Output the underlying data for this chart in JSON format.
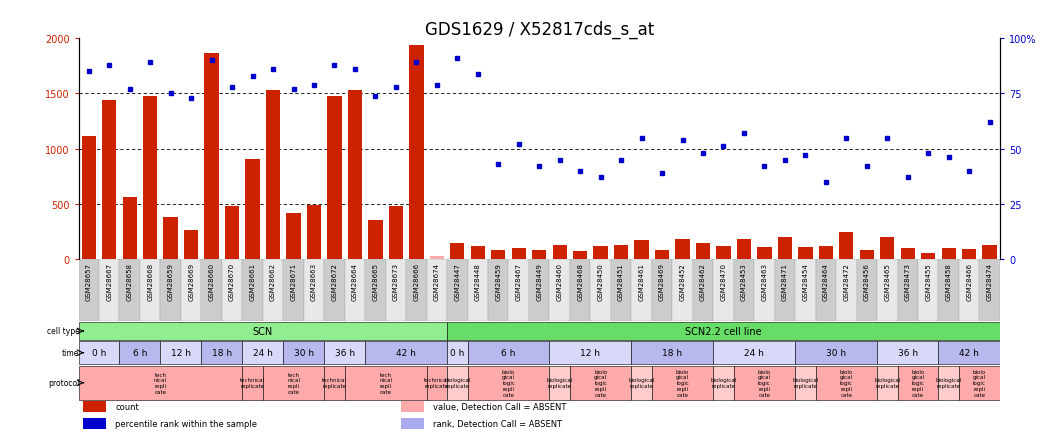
{
  "title": "GDS1629 / X52817cds_s_at",
  "sample_ids": [
    "GSM28657",
    "GSM28667",
    "GSM28658",
    "GSM28668",
    "GSM28659",
    "GSM28669",
    "GSM28660",
    "GSM28670",
    "GSM28661",
    "GSM28662",
    "GSM28671",
    "GSM28663",
    "GSM28672",
    "GSM28664",
    "GSM28665",
    "GSM28673",
    "GSM28666",
    "GSM28674",
    "GSM28447",
    "GSM28448",
    "GSM28459",
    "GSM28467",
    "GSM28449",
    "GSM28460",
    "GSM28468",
    "GSM28450",
    "GSM28451",
    "GSM28461",
    "GSM28469",
    "GSM28452",
    "GSM28462",
    "GSM28470",
    "GSM28453",
    "GSM28463",
    "GSM28471",
    "GSM28454",
    "GSM28464",
    "GSM28472",
    "GSM28456",
    "GSM28465",
    "GSM28473",
    "GSM28455",
    "GSM28458",
    "GSM28466",
    "GSM28474"
  ],
  "counts": [
    1110,
    1440,
    560,
    1480,
    380,
    260,
    1870,
    480,
    910,
    1530,
    420,
    490,
    1480,
    1530,
    350,
    480,
    1940,
    30,
    150,
    120,
    80,
    100,
    80,
    130,
    70,
    120,
    130,
    170,
    80,
    180,
    150,
    120,
    180,
    110,
    200,
    110,
    120,
    250,
    80,
    200,
    100,
    60,
    100,
    90,
    130
  ],
  "absent_counts": [
    false,
    false,
    false,
    false,
    false,
    false,
    false,
    false,
    false,
    false,
    false,
    false,
    false,
    false,
    false,
    false,
    false,
    true,
    false,
    false,
    false,
    false,
    false,
    false,
    false,
    false,
    false,
    false,
    false,
    false,
    false,
    false,
    false,
    false,
    false,
    false,
    false,
    false,
    false,
    false,
    false,
    false,
    false,
    false,
    false
  ],
  "ranks": [
    85,
    88,
    77,
    89,
    75,
    73,
    90,
    78,
    83,
    86,
    77,
    79,
    88,
    86,
    74,
    78,
    89,
    79,
    91,
    84,
    43,
    52,
    42,
    45,
    40,
    37,
    45,
    55,
    39,
    54,
    48,
    51,
    57,
    42,
    45,
    47,
    35,
    55,
    42,
    55,
    37,
    48,
    46,
    40,
    62
  ],
  "absent_ranks": [
    false,
    false,
    false,
    false,
    false,
    false,
    false,
    false,
    false,
    false,
    false,
    false,
    false,
    false,
    false,
    false,
    false,
    false,
    false,
    false,
    false,
    false,
    false,
    false,
    false,
    false,
    false,
    false,
    false,
    false,
    false,
    false,
    false,
    false,
    false,
    false,
    false,
    false,
    false,
    false,
    false,
    false,
    false,
    false,
    false
  ],
  "time_groups": [
    {
      "label": "0 h",
      "start": 0,
      "end": 1,
      "color": "#d8d8f8"
    },
    {
      "label": "6 h",
      "start": 2,
      "end": 3,
      "color": "#b8b8ee"
    },
    {
      "label": "12 h",
      "start": 4,
      "end": 5,
      "color": "#d8d8f8"
    },
    {
      "label": "18 h",
      "start": 6,
      "end": 7,
      "color": "#b8b8ee"
    },
    {
      "label": "24 h",
      "start": 8,
      "end": 9,
      "color": "#d8d8f8"
    },
    {
      "label": "30 h",
      "start": 10,
      "end": 11,
      "color": "#b8b8ee"
    },
    {
      "label": "36 h",
      "start": 12,
      "end": 13,
      "color": "#d8d8f8"
    },
    {
      "label": "42 h",
      "start": 14,
      "end": 17,
      "color": "#b8b8ee"
    },
    {
      "label": "0 h",
      "start": 18,
      "end": 18,
      "color": "#d8d8f8"
    },
    {
      "label": "6 h",
      "start": 19,
      "end": 22,
      "color": "#b8b8ee"
    },
    {
      "label": "12 h",
      "start": 23,
      "end": 26,
      "color": "#d8d8f8"
    },
    {
      "label": "18 h",
      "start": 27,
      "end": 30,
      "color": "#b8b8ee"
    },
    {
      "label": "24 h",
      "start": 31,
      "end": 34,
      "color": "#d8d8f8"
    },
    {
      "label": "30 h",
      "start": 35,
      "end": 38,
      "color": "#b8b8ee"
    },
    {
      "label": "36 h",
      "start": 39,
      "end": 41,
      "color": "#d8d8f8"
    },
    {
      "label": "42 h",
      "start": 42,
      "end": 44,
      "color": "#b8b8ee"
    }
  ],
  "cell_type_groups": [
    {
      "label": "SCN",
      "start": 0,
      "end": 17,
      "color": "#90EE90"
    },
    {
      "label": "SCN2.2 cell line",
      "start": 18,
      "end": 44,
      "color": "#66DD66"
    }
  ],
  "protocol_groups": [
    {
      "label": "tech\nnical\nrepli\ncate",
      "start": 0,
      "end": 7,
      "color": "#ffaaaa"
    },
    {
      "label": "technical\nreplicate",
      "start": 8,
      "end": 8,
      "color": "#ffaaaa"
    },
    {
      "label": "tech\nnical\nrepli\ncate",
      "start": 9,
      "end": 11,
      "color": "#ffaaaa"
    },
    {
      "label": "technical\nreplicate",
      "start": 12,
      "end": 12,
      "color": "#ffaaaa"
    },
    {
      "label": "tech\nnical\nrepli\ncate",
      "start": 13,
      "end": 16,
      "color": "#ffaaaa"
    },
    {
      "label": "technical\nreplicate",
      "start": 17,
      "end": 17,
      "color": "#ffaaaa"
    },
    {
      "label": "biological\nreplicate",
      "start": 18,
      "end": 18,
      "color": "#ffcccc"
    },
    {
      "label": "biolo\ngical\nlogic\nrepli\ncate",
      "start": 19,
      "end": 22,
      "color": "#ffaaaa"
    },
    {
      "label": "biological\nreplicate",
      "start": 23,
      "end": 23,
      "color": "#ffcccc"
    },
    {
      "label": "biolo\ngical\nlogic\nrepli\ncate",
      "start": 24,
      "end": 26,
      "color": "#ffaaaa"
    },
    {
      "label": "biological\nreplicate",
      "start": 27,
      "end": 27,
      "color": "#ffcccc"
    },
    {
      "label": "biolo\ngical\nlogic\nrepli\ncate",
      "start": 28,
      "end": 30,
      "color": "#ffaaaa"
    },
    {
      "label": "biological\nreplicate",
      "start": 31,
      "end": 31,
      "color": "#ffcccc"
    },
    {
      "label": "biolo\ngical\nlogic\nrepli\ncate",
      "start": 32,
      "end": 34,
      "color": "#ffaaaa"
    },
    {
      "label": "biological\nreplicate",
      "start": 35,
      "end": 35,
      "color": "#ffcccc"
    },
    {
      "label": "biolo\ngical\nlogic\nrepli\ncate",
      "start": 36,
      "end": 38,
      "color": "#ffaaaa"
    },
    {
      "label": "biological\nreplicate",
      "start": 39,
      "end": 39,
      "color": "#ffcccc"
    },
    {
      "label": "biolo\ngical\nlogic\nrepli\ncate",
      "start": 40,
      "end": 41,
      "color": "#ffaaaa"
    },
    {
      "label": "biological\nreplicate",
      "start": 42,
      "end": 42,
      "color": "#ffcccc"
    },
    {
      "label": "biolo\ngical\nlogic\nrepli\ncate",
      "start": 43,
      "end": 44,
      "color": "#ffaaaa"
    }
  ],
  "ylim_left": [
    0,
    2000
  ],
  "ylim_right": [
    0,
    100
  ],
  "yticks_left": [
    0,
    500,
    1000,
    1500,
    2000
  ],
  "yticks_right": [
    0,
    25,
    50,
    75,
    100
  ],
  "bar_color": "#cc2200",
  "dot_color": "#0000cc",
  "absent_bar_color": "#ffaaaa",
  "absent_dot_color": "#aaaaee",
  "background_color": "#ffffff",
  "tick_bg_color": "#cccccc",
  "title_fontsize": 12,
  "tick_fontsize": 5,
  "legend_items": [
    {
      "color": "#cc2200",
      "label": "count",
      "shape": "s"
    },
    {
      "color": "#0000cc",
      "label": "percentile rank within the sample",
      "shape": "s"
    },
    {
      "color": "#ffaaaa",
      "label": "value, Detection Call = ABSENT",
      "shape": "s"
    },
    {
      "color": "#aaaaee",
      "label": "rank, Detection Call = ABSENT",
      "shape": "s"
    }
  ]
}
